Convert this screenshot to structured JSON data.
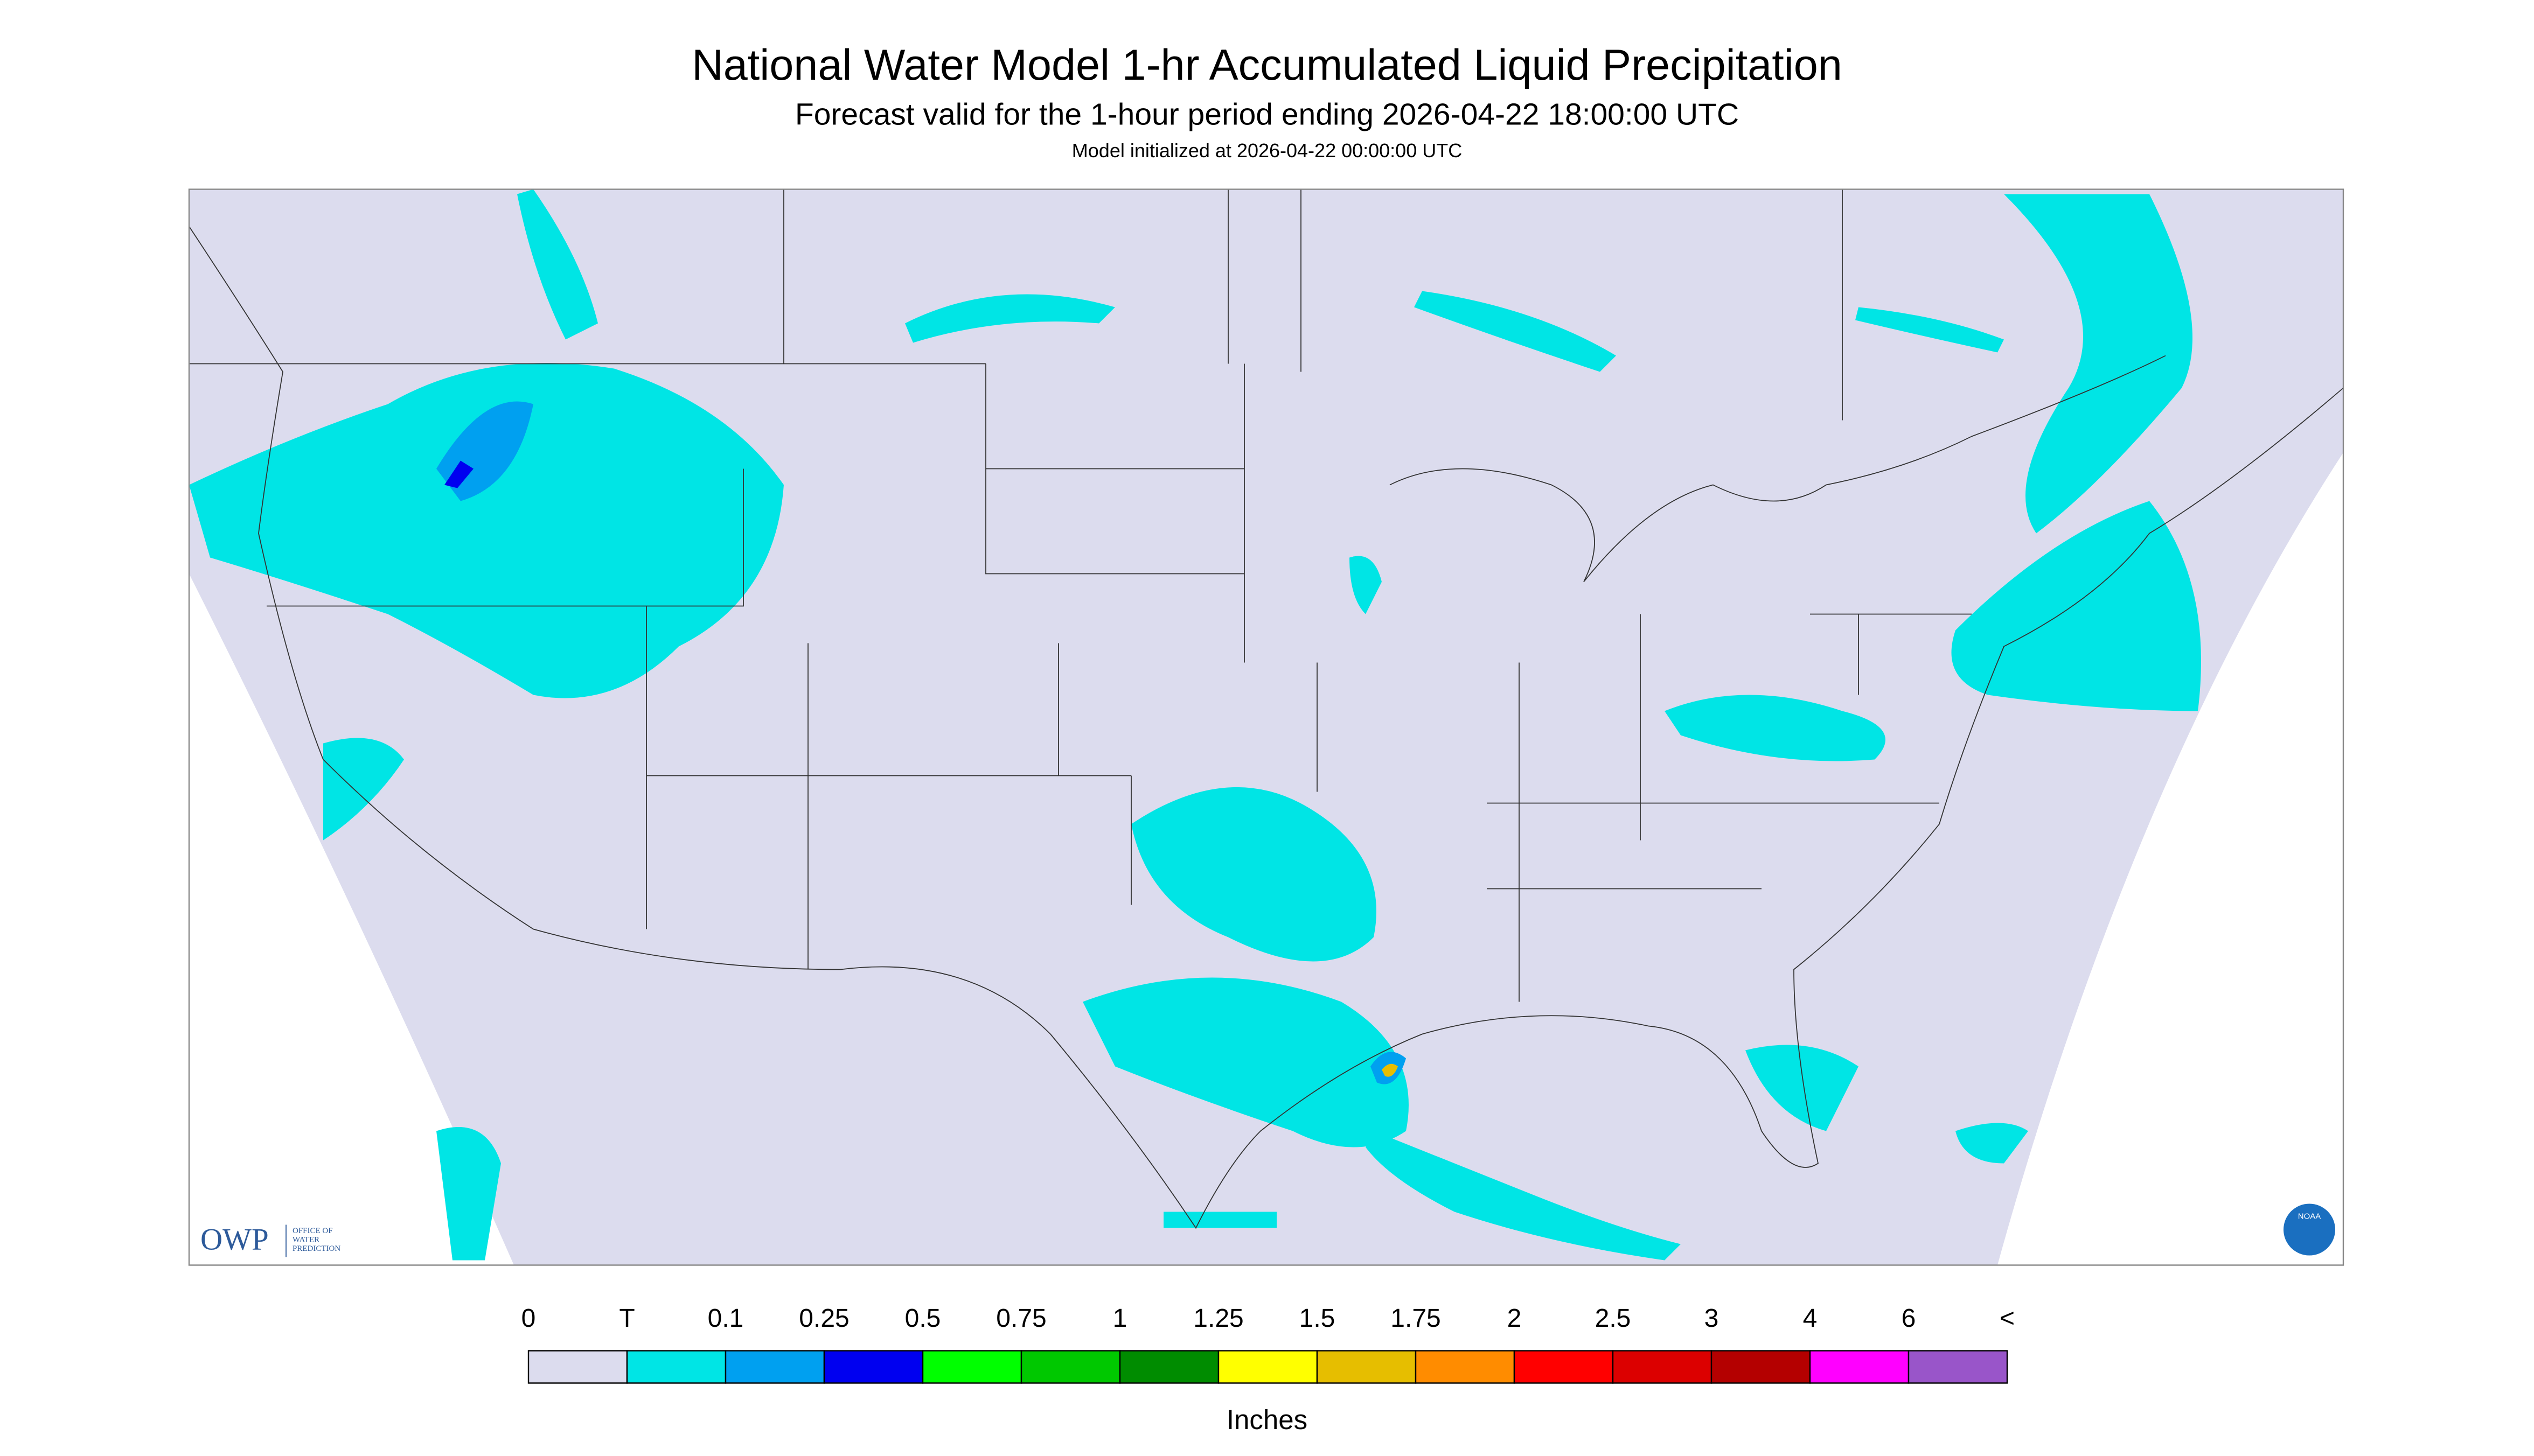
{
  "header": {
    "title": "National Water Model 1-hr Accumulated Liquid Precipitation",
    "subtitle": "Forecast valid for the 1-hour period ending 2026-04-22 18:00:00 UTC",
    "note": "Model initialized at 2026-04-22 00:00:00 UTC"
  },
  "logos": {
    "owp": "OWP",
    "owp_lines": [
      "OFFICE OF",
      "WATER",
      "PREDICTION"
    ],
    "noaa": "NOAA"
  },
  "legend": {
    "labels": [
      "0",
      "T",
      "0.1",
      "0.25",
      "0.5",
      "0.75",
      "1",
      "1.25",
      "1.5",
      "1.75",
      "2",
      "2.5",
      "3",
      "4",
      "6",
      "<"
    ],
    "colors": [
      "#dcdcee",
      "#00e5e5",
      "#00a0f0",
      "#0000f0",
      "#00ff00",
      "#00c800",
      "#008c00",
      "#ffff00",
      "#e6be00",
      "#ff8c00",
      "#ff0000",
      "#dc0000",
      "#b40000",
      "#ff00ff",
      "#9955c9"
    ],
    "unit": "Inches"
  }
}
